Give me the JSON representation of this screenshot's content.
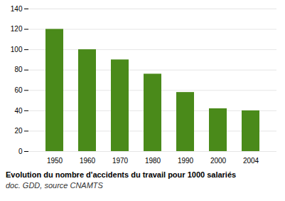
{
  "chart_data": {
    "type": "bar",
    "title": "Evolution du nombre d'accidents du travail pour 1000 salariés",
    "subtitle": "doc. GDD, source CNAMTS",
    "categories": [
      "1950",
      "1960",
      "1970",
      "1980",
      "1990",
      "2000",
      "2004"
    ],
    "values": [
      120,
      100,
      90,
      76,
      58,
      42,
      40
    ],
    "color": "#4a8a1a",
    "ylim": [
      0,
      140
    ],
    "yticks": [
      0,
      20,
      40,
      60,
      80,
      100,
      120,
      140
    ],
    "grid": true
  }
}
